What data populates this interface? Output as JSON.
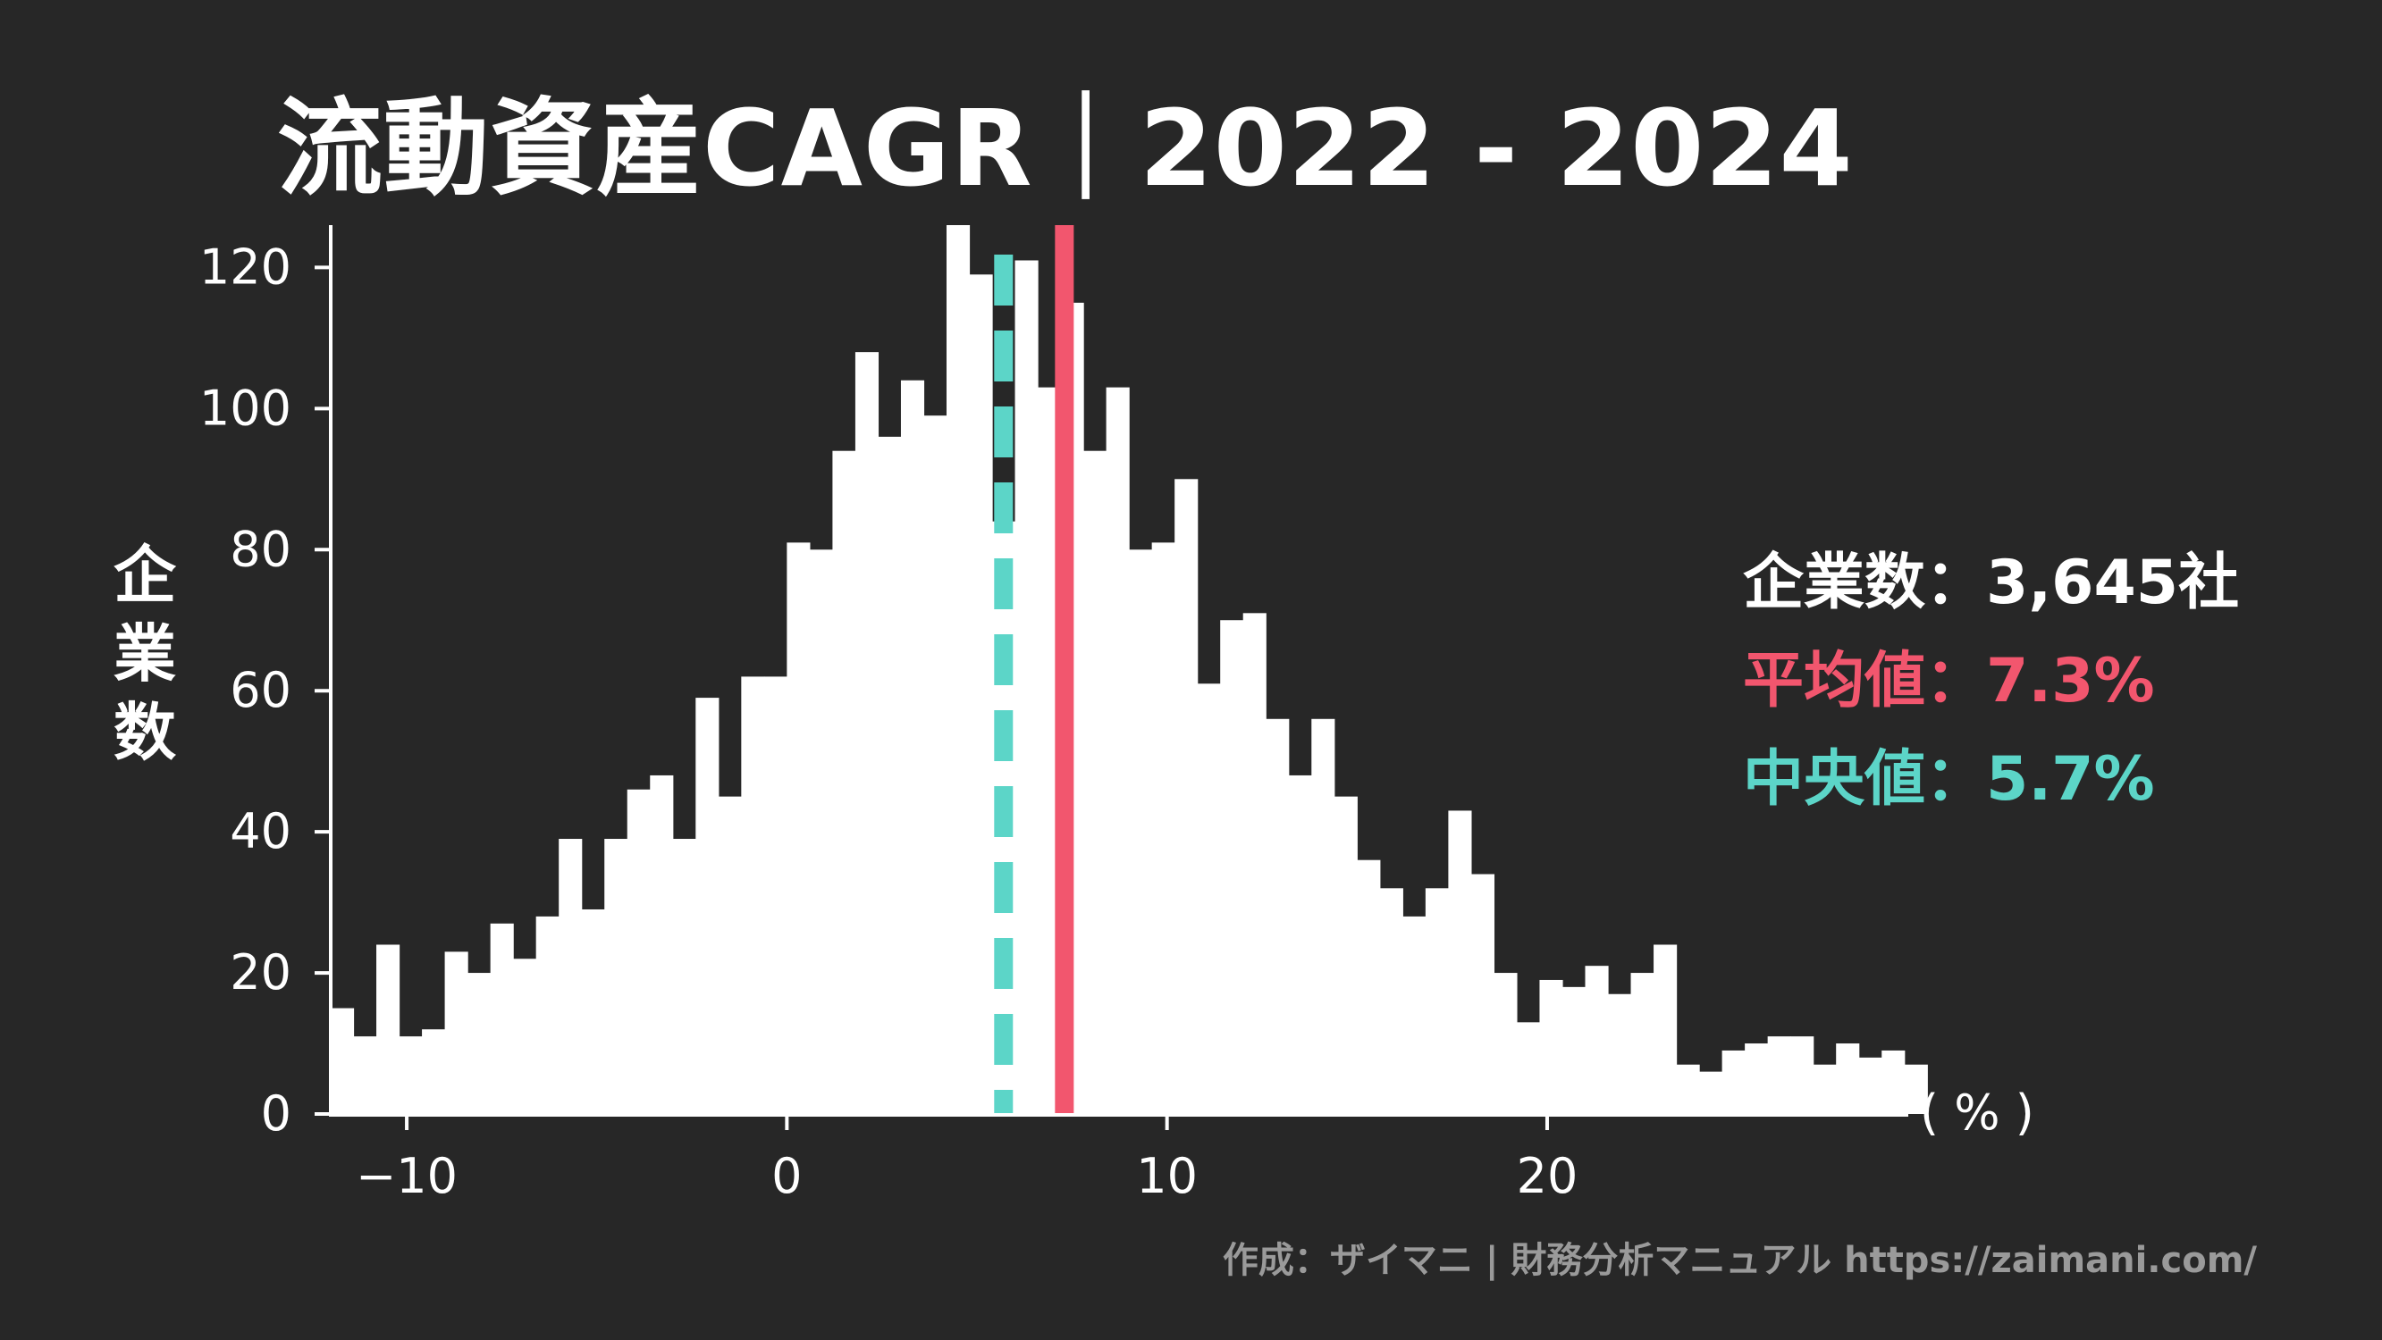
{
  "title": "流動資産CAGR｜2022 - 2024",
  "ylabel_chars": [
    "企",
    "業",
    "数"
  ],
  "unit_label": "( % )",
  "stats": {
    "count": "企業数：3,645社",
    "mean": "平均値：7.3%",
    "median": "中央値：5.7%"
  },
  "credit": "作成：ザイマニ | 財務分析マニュアル https://zaimani.com/",
  "colors": {
    "background": "#272727",
    "bars": "#ffffff",
    "mean_line": "#f2566e",
    "median_line": "#5cd5c8"
  },
  "chart_data": {
    "type": "bar",
    "subtype": "histogram",
    "bin_width": 0.6,
    "bin_start": -12.0,
    "values": [
      15,
      11,
      24,
      11,
      12,
      23,
      20,
      27,
      22,
      28,
      39,
      29,
      39,
      46,
      48,
      39,
      59,
      45,
      62,
      62,
      81,
      80,
      94,
      108,
      96,
      104,
      99,
      126,
      119,
      84,
      121,
      103,
      115,
      94,
      103,
      80,
      81,
      90,
      61,
      70,
      71,
      56,
      48,
      56,
      45,
      36,
      32,
      28,
      32,
      43,
      34,
      20,
      13,
      19,
      18,
      21,
      17,
      20,
      24,
      7,
      6,
      9,
      10,
      11,
      11,
      7,
      10,
      8,
      9,
      7
    ],
    "xlim": [
      -12,
      29.5
    ],
    "ylim": [
      0,
      126
    ],
    "xticks": [
      -10,
      0,
      10,
      20
    ],
    "xtick_labels": [
      "−10",
      "0",
      "10",
      "20"
    ],
    "yticks": [
      0,
      20,
      40,
      60,
      80,
      100,
      120
    ],
    "ytick_labels": [
      "0",
      "20",
      "40",
      "60",
      "80",
      "100",
      "120"
    ],
    "mean": 7.3,
    "median": 5.7,
    "grid": false,
    "legend": "none"
  }
}
